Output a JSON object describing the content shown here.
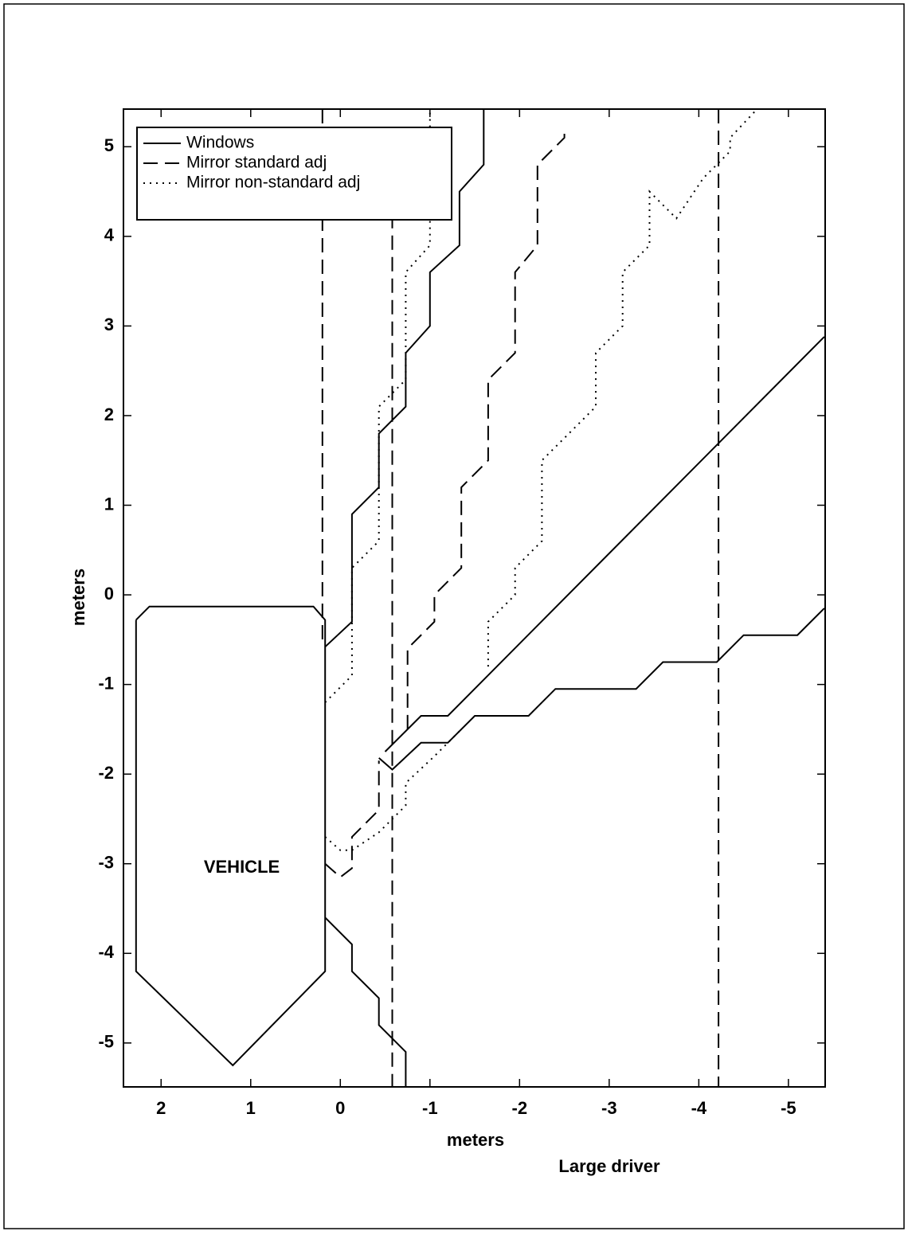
{
  "chart_data": {
    "type": "line",
    "xlabel": "meters",
    "ylabel": "meters",
    "subtitle": "Large driver",
    "xlim": [
      2.42,
      -5.41
    ],
    "ylim": [
      -5.49,
      5.42
    ],
    "xticks": [
      2,
      1,
      0,
      -1,
      -2,
      -3,
      -4,
      -5
    ],
    "yticks": [
      -5,
      -4,
      -3,
      -2,
      -1,
      0,
      1,
      2,
      3,
      4,
      5
    ],
    "grid": false,
    "legend": "upper left",
    "annotation": "VEHICLE",
    "vehicle": {
      "x": [
        2.28,
        2.13,
        0.3,
        0.17,
        0.17,
        1.2,
        2.28,
        2.28
      ],
      "y": [
        -0.28,
        -0.13,
        -0.13,
        -0.28,
        -4.2,
        -5.25,
        -4.2,
        -0.28
      ]
    },
    "series": [
      {
        "name": "Windows",
        "color": "#000000",
        "dash": "solid",
        "x": [
          0.17,
          -0.13,
          -0.13,
          -0.43,
          -0.43,
          -0.73,
          -0.73,
          -1.0,
          -1.0,
          -1.33,
          -1.33,
          -1.6,
          -1.6,
          null,
          0.17,
          -0.13,
          -0.13,
          -0.43,
          -0.43,
          -0.73,
          -0.73,
          null,
          -0.43,
          -0.58,
          -0.9,
          -1.2,
          -1.5,
          -2.1,
          -2.4,
          -3.3,
          -3.6,
          -4.2,
          -4.5,
          -5.1,
          -5.4,
          null,
          -0.5,
          -0.9,
          -1.2,
          -5.4
        ],
        "y": [
          -0.58,
          -0.3,
          0.9,
          1.2,
          1.8,
          2.1,
          2.7,
          3.0,
          3.6,
          3.9,
          4.5,
          4.8,
          5.42,
          null,
          -3.6,
          -3.9,
          -4.2,
          -4.5,
          -4.8,
          -5.1,
          -5.49,
          null,
          -1.82,
          -1.95,
          -1.65,
          -1.65,
          -1.35,
          -1.35,
          -1.05,
          -1.05,
          -0.75,
          -0.75,
          -0.45,
          -0.45,
          -0.15,
          null,
          -1.75,
          -1.35,
          -1.35,
          2.88
        ]
      },
      {
        "name": "Mirror standard adj",
        "color": "#000000",
        "dash": "dashed",
        "x": [
          0.2,
          0.2,
          null,
          -0.58,
          -0.58,
          null,
          -4.22,
          -4.22,
          null,
          -0.75,
          -0.75,
          -1.05,
          -1.05,
          -1.35,
          -1.35,
          -1.65,
          -1.65,
          -1.95,
          -1.95,
          -2.2,
          -2.2,
          -2.5,
          -2.5,
          null,
          0.17,
          0.0,
          -0.13,
          -0.13,
          -0.43,
          -0.43
        ],
        "y": [
          5.42,
          -0.55,
          null,
          4.25,
          -5.49,
          null,
          5.42,
          -5.49,
          null,
          -1.5,
          -0.6,
          -0.3,
          0.0,
          0.3,
          1.2,
          1.5,
          2.4,
          2.7,
          3.6,
          3.9,
          4.8,
          5.1,
          5.2,
          null,
          -3.0,
          -3.15,
          -3.05,
          -2.7,
          -2.4,
          -1.85
        ]
      },
      {
        "name": "Mirror non-standard adj",
        "color": "#000000",
        "dash": "dotted",
        "x": [
          0.17,
          -0.13,
          -0.13,
          -0.43,
          -0.43,
          -0.73,
          -0.73,
          -1.0,
          -1.0,
          -1.0,
          null,
          -1.65,
          -1.65,
          -1.95,
          -1.95,
          -2.25,
          -2.25,
          -2.55,
          -2.85,
          -2.85,
          -3.15,
          -3.15,
          -3.45,
          -3.45,
          -3.75,
          -4.05,
          -4.35,
          -4.35,
          -4.65,
          null,
          0.17,
          0.0,
          -0.13,
          -0.43,
          -0.73,
          -0.73,
          -1.05,
          -1.35
        ],
        "y": [
          -1.2,
          -0.9,
          0.3,
          0.6,
          2.1,
          2.4,
          3.6,
          3.9,
          4.2,
          5.42,
          null,
          -0.8,
          -0.3,
          0.0,
          0.3,
          0.6,
          1.5,
          1.8,
          2.1,
          2.7,
          3.0,
          3.6,
          3.9,
          4.5,
          4.2,
          4.65,
          4.95,
          5.1,
          5.42,
          null,
          -2.7,
          -2.85,
          -2.85,
          -2.65,
          -2.35,
          -2.1,
          -1.8,
          -1.5
        ]
      }
    ]
  }
}
